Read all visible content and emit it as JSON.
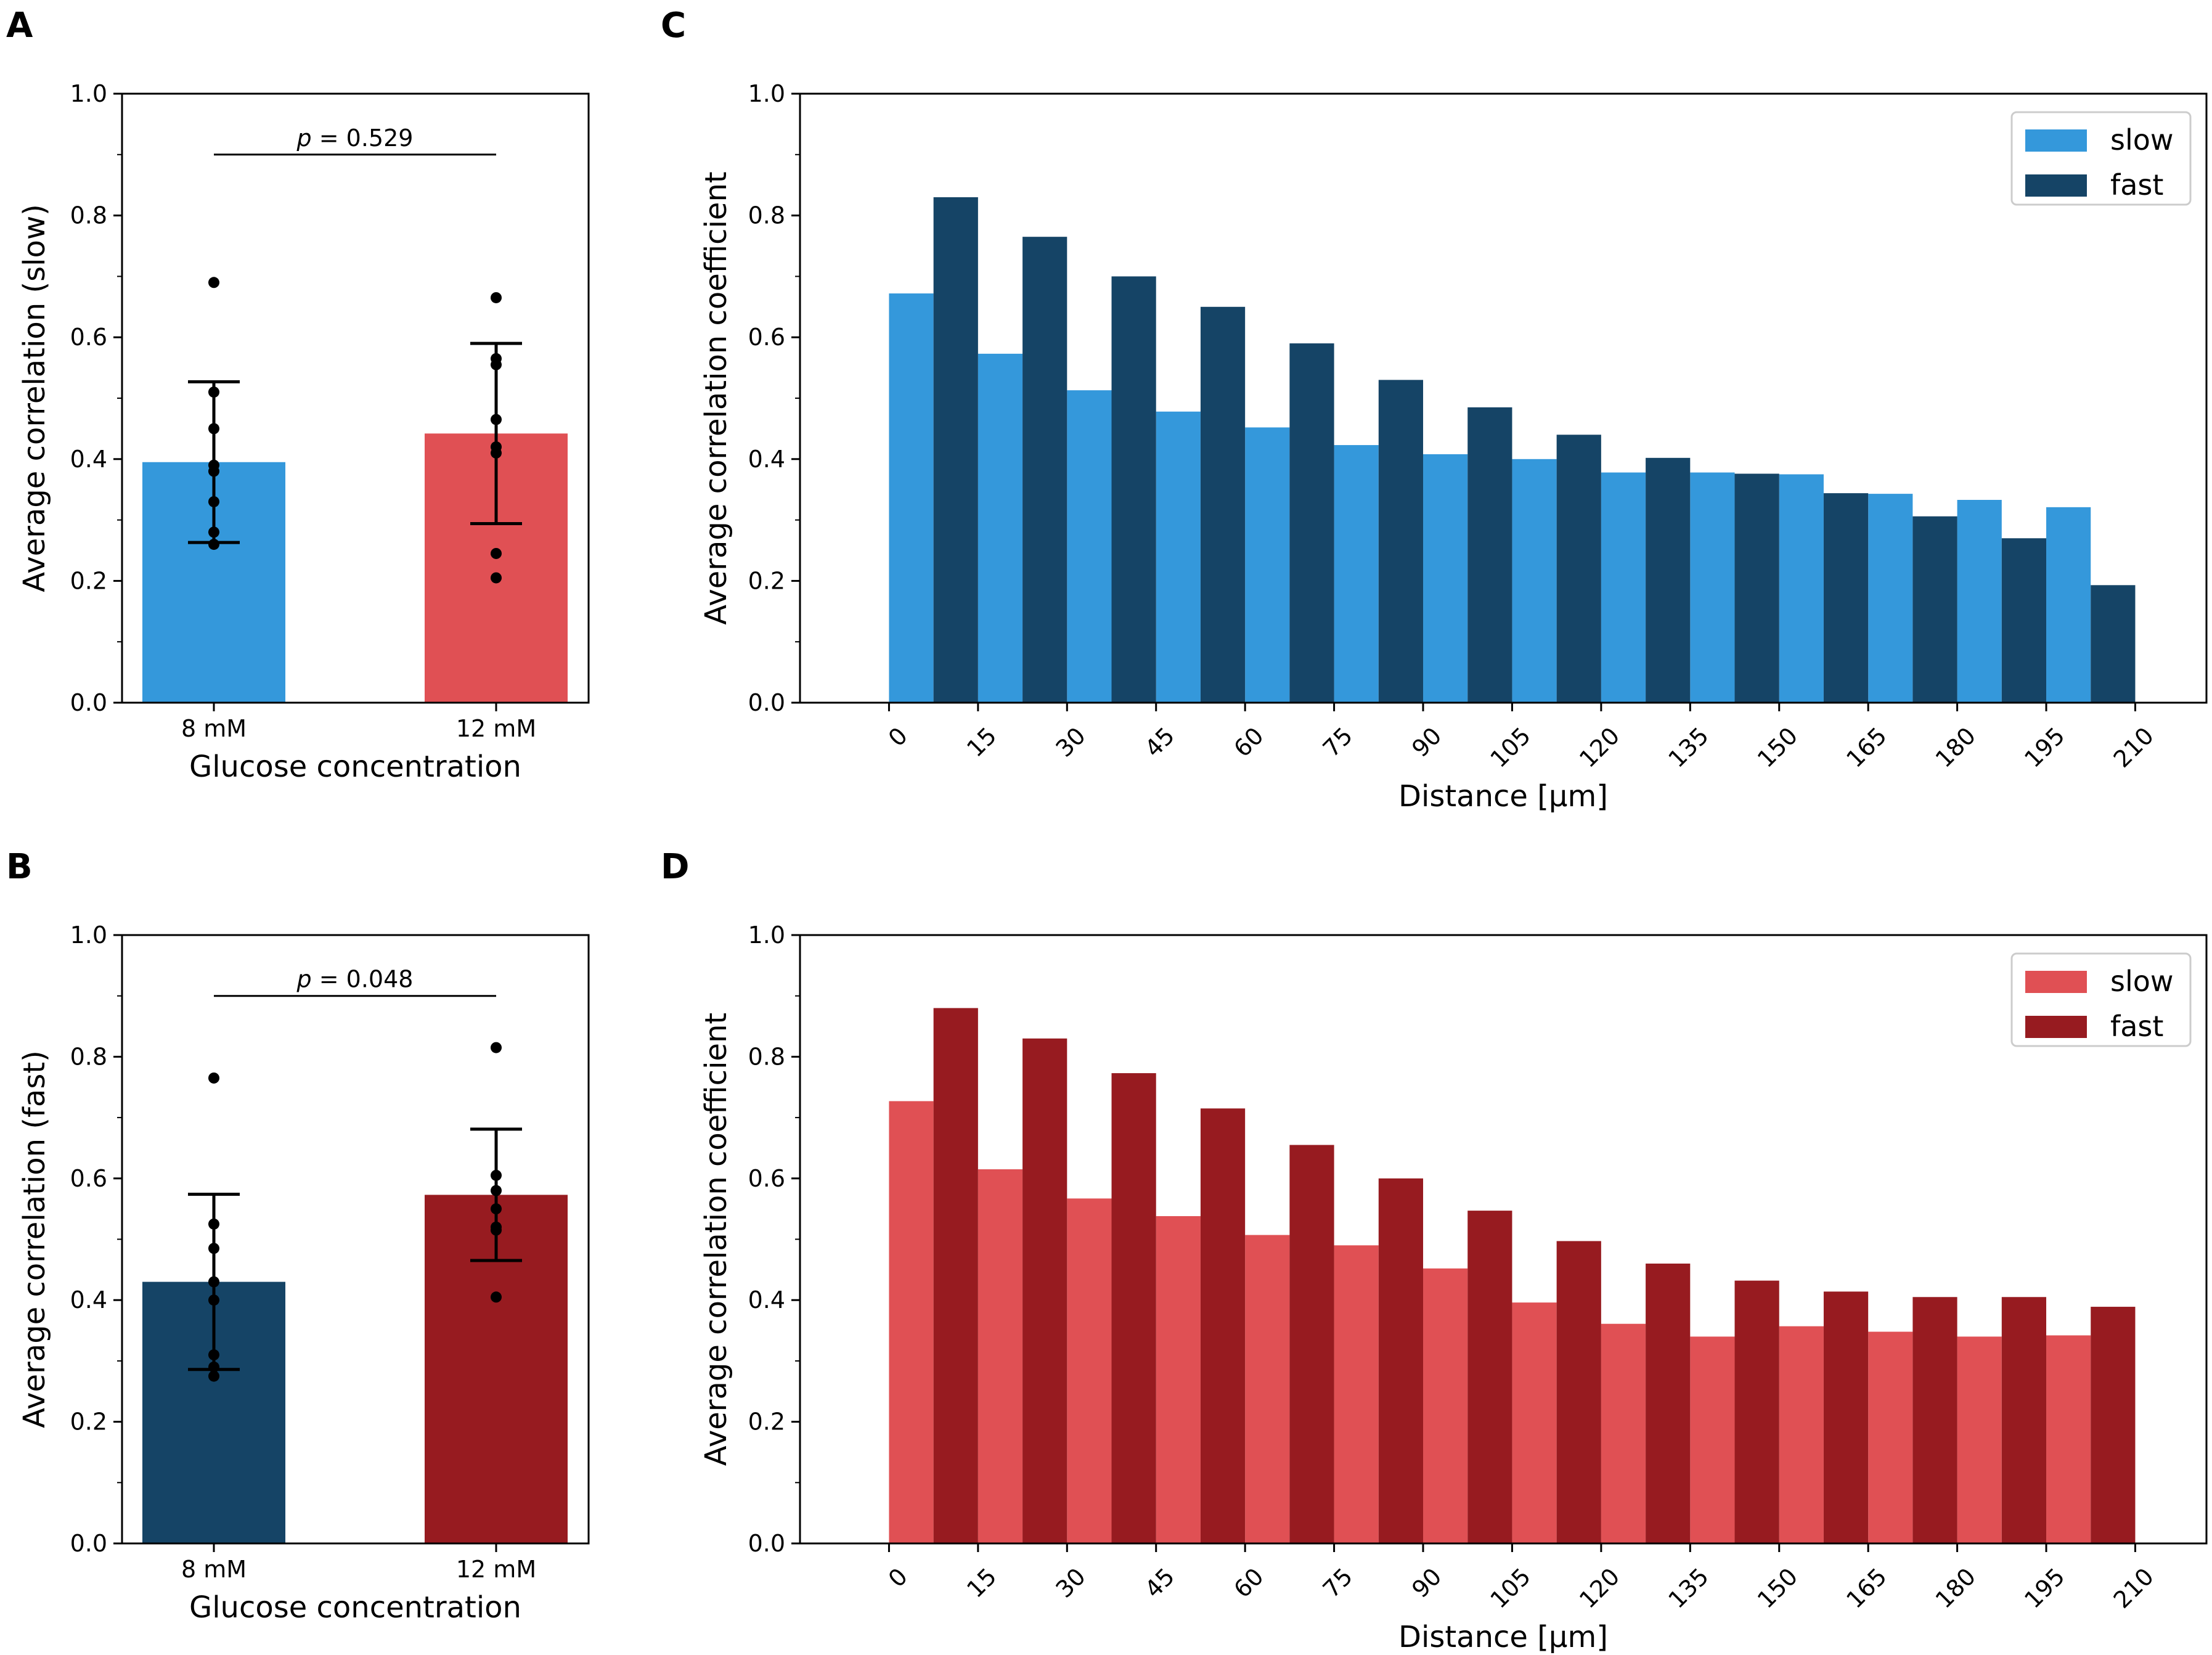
{
  "colors": {
    "slow_blue": "#3498db",
    "fast_blue": "#154466",
    "slow_red": "#e05054",
    "fast_red": "#971b20",
    "axis": "#000000"
  },
  "chart_data": [
    {
      "id": "A",
      "panel_letter": "A",
      "type": "bar",
      "categories": [
        "8 mM",
        "12 mM"
      ],
      "values": [
        0.395,
        0.442
      ],
      "error": [
        0.132,
        0.148
      ],
      "points": [
        [
          0.69,
          0.51,
          0.45,
          0.39,
          0.38,
          0.33,
          0.28,
          0.26
        ],
        [
          0.665,
          0.565,
          0.555,
          0.465,
          0.42,
          0.41,
          0.245,
          0.205
        ]
      ],
      "bar_colors": [
        "#3498db",
        "#e05054"
      ],
      "significance": {
        "p_prefix": "p",
        "p_value": " = 0.529",
        "y": 0.9
      },
      "xlabel": "Glucose concentration",
      "ylabel": "Average correlation (slow)",
      "ylim": [
        0,
        1
      ],
      "yticks": [
        "0.0",
        "0.2",
        "0.4",
        "0.6",
        "0.8",
        "1.0"
      ]
    },
    {
      "id": "B",
      "panel_letter": "B",
      "type": "bar",
      "categories": [
        "8 mM",
        "12 mM"
      ],
      "values": [
        0.43,
        0.573
      ],
      "error": [
        0.144,
        0.108
      ],
      "points": [
        [
          0.765,
          0.525,
          0.485,
          0.43,
          0.4,
          0.31,
          0.29,
          0.275
        ],
        [
          0.815,
          0.605,
          0.58,
          0.55,
          0.52,
          0.515,
          0.405
        ]
      ],
      "bar_colors": [
        "#154466",
        "#971b20"
      ],
      "significance": {
        "p_prefix": "p",
        "p_value": " = 0.048",
        "y": 0.9
      },
      "xlabel": "Glucose concentration",
      "ylabel": "Average correlation (fast)",
      "ylim": [
        0,
        1
      ],
      "yticks": [
        "0.0",
        "0.2",
        "0.4",
        "0.6",
        "0.8",
        "1.0"
      ]
    },
    {
      "id": "C",
      "panel_letter": "C",
      "type": "bar",
      "x_bins": [
        7.5,
        22.5,
        37.5,
        52.5,
        67.5,
        82.5,
        97.5,
        112.5,
        127.5,
        142.5,
        157.5,
        172.5,
        187.5,
        202.5
      ],
      "series": [
        {
          "name": "slow",
          "color": "#3498db",
          "values": [
            0.672,
            0.573,
            0.513,
            0.478,
            0.452,
            0.423,
            0.408,
            0.4,
            0.378,
            0.378,
            0.375,
            0.343,
            0.333,
            0.321
          ]
        },
        {
          "name": "fast",
          "color": "#154466",
          "values": [
            0.83,
            0.765,
            0.7,
            0.65,
            0.59,
            0.53,
            0.485,
            0.44,
            0.402,
            0.376,
            0.344,
            0.306,
            0.27,
            0.193
          ]
        }
      ],
      "xlabel": "Distance [μm]",
      "ylabel": "Average correlation coefficient",
      "xlim": [
        -15,
        222
      ],
      "ylim": [
        0,
        1
      ],
      "xticks": [
        "0",
        "15",
        "30",
        "45",
        "60",
        "75",
        "90",
        "105",
        "120",
        "135",
        "150",
        "165",
        "180",
        "195",
        "210"
      ],
      "yticks": [
        "0.0",
        "0.2",
        "0.4",
        "0.6",
        "0.8",
        "1.0"
      ],
      "legend_position": "top-right"
    },
    {
      "id": "D",
      "panel_letter": "D",
      "type": "bar",
      "x_bins": [
        7.5,
        22.5,
        37.5,
        52.5,
        67.5,
        82.5,
        97.5,
        112.5,
        127.5,
        142.5,
        157.5,
        172.5,
        187.5,
        202.5
      ],
      "series": [
        {
          "name": "slow",
          "color": "#e05054",
          "values": [
            0.727,
            0.615,
            0.567,
            0.538,
            0.507,
            0.49,
            0.452,
            0.396,
            0.361,
            0.34,
            0.357,
            0.348,
            0.34,
            0.342
          ]
        },
        {
          "name": "fast",
          "color": "#971b20",
          "values": [
            0.88,
            0.83,
            0.773,
            0.715,
            0.655,
            0.6,
            0.547,
            0.497,
            0.46,
            0.432,
            0.414,
            0.405,
            0.405,
            0.389
          ]
        }
      ],
      "xlabel": "Distance [μm]",
      "ylabel": "Average correlation coefficient",
      "xlim": [
        -15,
        222
      ],
      "ylim": [
        0,
        1
      ],
      "xticks": [
        "0",
        "15",
        "30",
        "45",
        "60",
        "75",
        "90",
        "105",
        "120",
        "135",
        "150",
        "165",
        "180",
        "195",
        "210"
      ],
      "yticks": [
        "0.0",
        "0.2",
        "0.4",
        "0.6",
        "0.8",
        "1.0"
      ],
      "legend_position": "top-right"
    }
  ]
}
